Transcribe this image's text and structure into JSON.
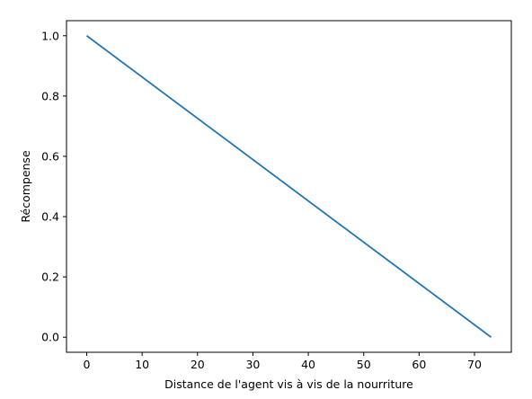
{
  "chart_data": {
    "type": "line",
    "title": "",
    "xlabel": "Distance de l'agent vis à vis de la nourriture",
    "ylabel": "Récompense",
    "xlim": [
      -3.65,
      76.65
    ],
    "ylim": [
      -0.05,
      1.05
    ],
    "xticks": [
      0,
      10,
      20,
      30,
      40,
      50,
      60,
      70
    ],
    "yticks": [
      0.0,
      0.2,
      0.4,
      0.6,
      0.8,
      1.0
    ],
    "xtick_labels": [
      "0",
      "10",
      "20",
      "30",
      "40",
      "50",
      "60",
      "70"
    ],
    "ytick_labels": [
      "0.0",
      "0.2",
      "0.4",
      "0.6",
      "0.8",
      "1.0"
    ],
    "grid": false,
    "legend": "none",
    "series": [
      {
        "color": "#1f77b4",
        "x": [
          0,
          73
        ],
        "y": [
          1.0,
          0.0
        ]
      }
    ]
  }
}
